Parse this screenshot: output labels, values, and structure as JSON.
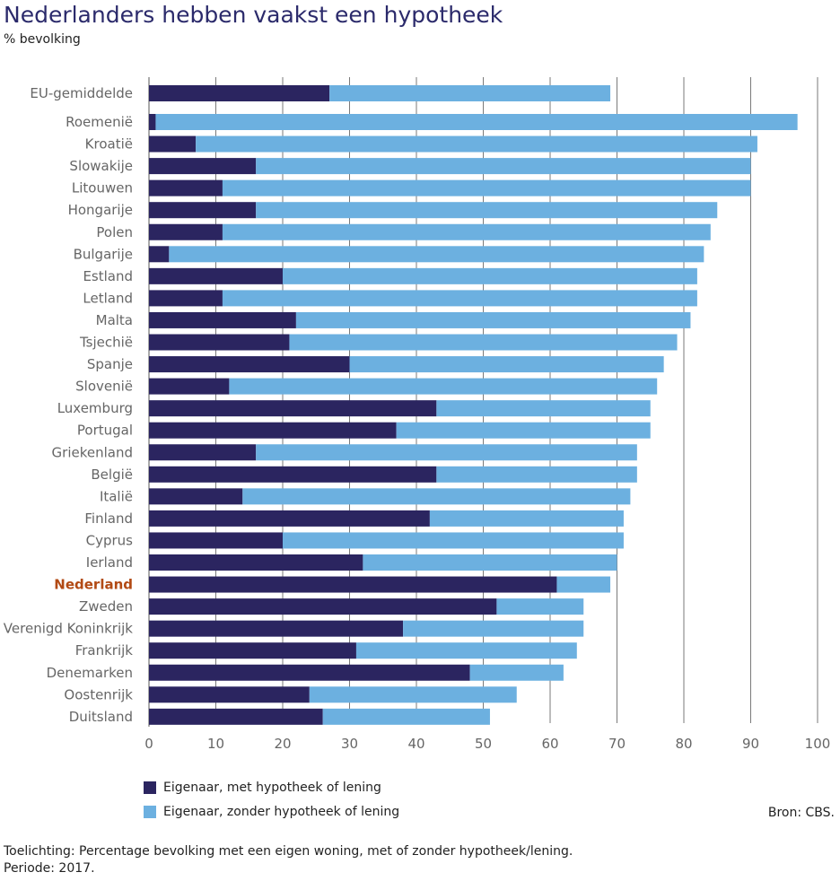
{
  "title": "Nederlanders hebben vaakst een hypotheek",
  "subtitle": "% bevolking",
  "source": "Bron: CBS.",
  "note_line1": "Toelichting: Percentage bevolking met een eigen woning, met of zonder hypotheek/lening.",
  "note_line2": "Periode: 2017.",
  "colors": {
    "with_mortgage": "#2b2560",
    "without_mortgage": "#6cb0e0",
    "highlight_label": "#b24a14",
    "label": "#666666",
    "grid": "#7a7a7a"
  },
  "chart_data": {
    "type": "bar",
    "orientation": "horizontal",
    "stacked": true,
    "highlight": "Nederland",
    "categories": [
      "EU-gemiddelde",
      "Roemenië",
      "Kroatië",
      "Slowakije",
      "Litouwen",
      "Hongarije",
      "Polen",
      "Bulgarije",
      "Estland",
      "Letland",
      "Malta",
      "Tsjechië",
      "Spanje",
      "Slovenië",
      "Luxemburg",
      "Portugal",
      "Griekenland",
      "België",
      "Italië",
      "Finland",
      "Cyprus",
      "Ierland",
      "Nederland",
      "Zweden",
      "Verenigd Koninkrijk",
      "Frankrijk",
      "Denemarken",
      "Oostenrijk",
      "Duitsland"
    ],
    "series": [
      {
        "name": "Eigenaar, met hypotheek of lening",
        "values": [
          27,
          1,
          7,
          16,
          11,
          16,
          11,
          3,
          20,
          11,
          22,
          21,
          30,
          12,
          43,
          37,
          16,
          43,
          14,
          42,
          20,
          32,
          61,
          52,
          38,
          31,
          48,
          24,
          26
        ]
      },
      {
        "name": "Eigenaar, zonder hypotheek of lening",
        "values": [
          42,
          96,
          84,
          74,
          79,
          69,
          73,
          80,
          62,
          71,
          59,
          58,
          47,
          64,
          32,
          38,
          57,
          30,
          58,
          29,
          51,
          38,
          8,
          13,
          27,
          33,
          14,
          31,
          25
        ]
      }
    ],
    "xlim": [
      0,
      100
    ],
    "xticks": [
      0,
      10,
      20,
      30,
      40,
      50,
      60,
      70,
      80,
      90,
      100
    ],
    "legend_position": "bottom-left"
  }
}
